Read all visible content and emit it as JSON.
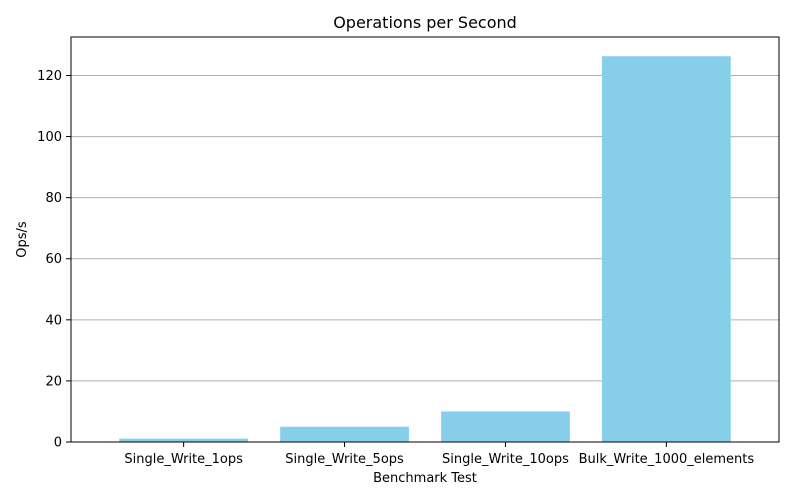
{
  "chart_data": {
    "type": "bar",
    "title": "Operations per Second",
    "xlabel": "Benchmark Test",
    "ylabel": "Ops/s",
    "categories": [
      "Single_Write_1ops",
      "Single_Write_5ops",
      "Single_Write_10ops",
      "Bulk_Write_1000_elements"
    ],
    "values": [
      1.1,
      5.0,
      10.0,
      126.3
    ],
    "ylim": [
      0,
      132.6
    ],
    "yticks": [
      0,
      20,
      40,
      60,
      80,
      100,
      120
    ],
    "grid": "y-axis",
    "colors": {
      "bar": "#87ceeb",
      "grid": "#b0b0b0",
      "axis": "#000000"
    }
  }
}
